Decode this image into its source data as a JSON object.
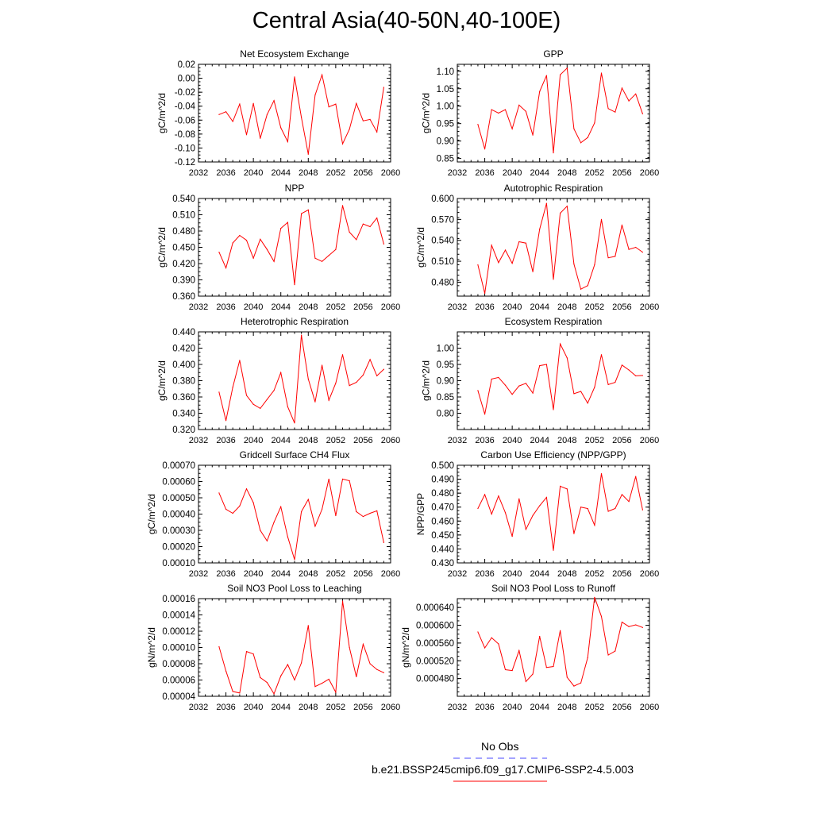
{
  "title": "Central Asia(40-50N,40-100E)",
  "colors": {
    "series": "#ff0000",
    "obs": "#4a4aff",
    "axis": "#000000"
  },
  "legend": {
    "obs_label": "No Obs",
    "model_label": "b.e21.BSSP245cmip6.f09_g17.CMIP6-SSP2-4.5.003"
  },
  "chart_data": [
    {
      "type": "line",
      "title": "Net Ecosystem Exchange",
      "ylabel": "gC/m^2/d",
      "xlim": [
        2032,
        2060
      ],
      "xticks": [
        2032,
        2036,
        2040,
        2044,
        2048,
        2052,
        2056,
        2060
      ],
      "xtick_labels": [
        "2032",
        "2036",
        "2040",
        "2044",
        "2048",
        "2052",
        "2056",
        "2060"
      ],
      "ylim": [
        -0.12,
        0.02
      ],
      "yticks": [
        -0.12,
        -0.1,
        -0.08,
        -0.06,
        -0.04,
        -0.02,
        0.0,
        0.02
      ],
      "ytick_labels": [
        "-0.12",
        "-0.10",
        "-0.08",
        "-0.06",
        "-0.04",
        "-0.02",
        "0.00",
        "0.02"
      ],
      "x": [
        2035,
        2036,
        2037,
        2038,
        2039,
        2040,
        2041,
        2042,
        2043,
        2044,
        2045,
        2046,
        2047,
        2048,
        2049,
        2050,
        2051,
        2052,
        2053,
        2054,
        2055,
        2056,
        2057,
        2058,
        2059
      ],
      "values": [
        -0.052,
        -0.048,
        -0.062,
        -0.037,
        -0.081,
        -0.036,
        -0.086,
        -0.052,
        -0.032,
        -0.071,
        -0.091,
        0.002,
        -0.056,
        -0.109,
        -0.024,
        0.005,
        -0.041,
        -0.037,
        -0.094,
        -0.073,
        -0.036,
        -0.061,
        -0.059,
        -0.077,
        -0.013
      ]
    },
    {
      "type": "line",
      "title": "GPP",
      "ylabel": "gC/m^2/d",
      "xlim": [
        2032,
        2060
      ],
      "xticks": [
        2032,
        2036,
        2040,
        2044,
        2048,
        2052,
        2056,
        2060
      ],
      "xtick_labels": [
        "2032",
        "2036",
        "2040",
        "2044",
        "2048",
        "2052",
        "2056",
        "2060"
      ],
      "ylim": [
        0.84,
        1.12
      ],
      "yticks": [
        0.85,
        0.9,
        0.95,
        1.0,
        1.05,
        1.1
      ],
      "ytick_labels": [
        "0.85",
        "0.90",
        "0.95",
        "1.00",
        "1.05",
        "1.10"
      ],
      "x": [
        2035,
        2036,
        2037,
        2038,
        2039,
        2040,
        2041,
        2042,
        2043,
        2044,
        2045,
        2046,
        2047,
        2048,
        2049,
        2050,
        2051,
        2052,
        2053,
        2054,
        2055,
        2056,
        2057,
        2058,
        2059
      ],
      "values": [
        0.948,
        0.877,
        0.99,
        0.98,
        0.99,
        0.935,
        1.003,
        0.985,
        0.917,
        1.042,
        1.088,
        0.866,
        1.09,
        1.109,
        0.935,
        0.895,
        0.91,
        0.952,
        1.095,
        0.993,
        0.983,
        1.052,
        1.015,
        1.035,
        0.978
      ]
    },
    {
      "type": "line",
      "title": "NPP",
      "ylabel": "gC/m^2/d",
      "xlim": [
        2032,
        2060
      ],
      "xticks": [
        2032,
        2036,
        2040,
        2044,
        2048,
        2052,
        2056,
        2060
      ],
      "xtick_labels": [
        "2032",
        "2036",
        "2040",
        "2044",
        "2048",
        "2052",
        "2056",
        "2060"
      ],
      "ylim": [
        0.36,
        0.54
      ],
      "yticks": [
        0.36,
        0.39,
        0.42,
        0.45,
        0.48,
        0.51,
        0.54
      ],
      "ytick_labels": [
        "0.360",
        "0.390",
        "0.420",
        "0.450",
        "0.480",
        "0.510",
        "0.540"
      ],
      "x": [
        2035,
        2036,
        2037,
        2038,
        2039,
        2040,
        2041,
        2042,
        2043,
        2044,
        2045,
        2046,
        2047,
        2048,
        2049,
        2050,
        2051,
        2052,
        2053,
        2054,
        2055,
        2056,
        2057,
        2058,
        2059
      ],
      "values": [
        0.441,
        0.412,
        0.458,
        0.472,
        0.463,
        0.43,
        0.465,
        0.446,
        0.424,
        0.485,
        0.496,
        0.381,
        0.512,
        0.519,
        0.43,
        0.424,
        0.435,
        0.446,
        0.527,
        0.478,
        0.464,
        0.493,
        0.488,
        0.504,
        0.456
      ]
    },
    {
      "type": "line",
      "title": "Autotrophic Respiration",
      "ylabel": "gC/m^2/d",
      "xlim": [
        2032,
        2060
      ],
      "xticks": [
        2032,
        2036,
        2040,
        2044,
        2048,
        2052,
        2056,
        2060
      ],
      "xtick_labels": [
        "2032",
        "2036",
        "2040",
        "2044",
        "2048",
        "2052",
        "2056",
        "2060"
      ],
      "ylim": [
        0.46,
        0.6
      ],
      "yticks": [
        0.48,
        0.51,
        0.54,
        0.57,
        0.6
      ],
      "ytick_labels": [
        "0.480",
        "0.510",
        "0.540",
        "0.570",
        "0.600"
      ],
      "x": [
        2035,
        2036,
        2037,
        2038,
        2039,
        2040,
        2041,
        2042,
        2043,
        2044,
        2045,
        2046,
        2047,
        2048,
        2049,
        2050,
        2051,
        2052,
        2053,
        2054,
        2055,
        2056,
        2057,
        2058,
        2059
      ],
      "values": [
        0.505,
        0.464,
        0.533,
        0.508,
        0.526,
        0.507,
        0.538,
        0.536,
        0.495,
        0.556,
        0.593,
        0.484,
        0.579,
        0.589,
        0.506,
        0.47,
        0.475,
        0.505,
        0.57,
        0.515,
        0.517,
        0.562,
        0.527,
        0.53,
        0.523
      ]
    },
    {
      "type": "line",
      "title": "Heterotrophic Respiration",
      "ylabel": "gC/m^2/d",
      "xlim": [
        2032,
        2060
      ],
      "xticks": [
        2032,
        2036,
        2040,
        2044,
        2048,
        2052,
        2056,
        2060
      ],
      "xtick_labels": [
        "2032",
        "2036",
        "2040",
        "2044",
        "2048",
        "2052",
        "2056",
        "2060"
      ],
      "ylim": [
        0.32,
        0.44
      ],
      "yticks": [
        0.32,
        0.34,
        0.36,
        0.38,
        0.4,
        0.42,
        0.44
      ],
      "ytick_labels": [
        "0.320",
        "0.340",
        "0.360",
        "0.380",
        "0.400",
        "0.420",
        "0.440"
      ],
      "x": [
        2035,
        2036,
        2037,
        2038,
        2039,
        2040,
        2041,
        2042,
        2043,
        2044,
        2045,
        2046,
        2047,
        2048,
        2049,
        2050,
        2051,
        2052,
        2053,
        2054,
        2055,
        2056,
        2057,
        2058,
        2059
      ],
      "values": [
        0.366,
        0.331,
        0.372,
        0.405,
        0.362,
        0.351,
        0.346,
        0.357,
        0.368,
        0.39,
        0.348,
        0.328,
        0.436,
        0.382,
        0.354,
        0.399,
        0.356,
        0.377,
        0.412,
        0.374,
        0.378,
        0.387,
        0.406,
        0.386,
        0.394
      ]
    },
    {
      "type": "line",
      "title": "Ecosystem Respiration",
      "ylabel": "gC/m^2/d",
      "xlim": [
        2032,
        2060
      ],
      "xticks": [
        2032,
        2036,
        2040,
        2044,
        2048,
        2052,
        2056,
        2060
      ],
      "xtick_labels": [
        "2032",
        "2036",
        "2040",
        "2044",
        "2048",
        "2052",
        "2056",
        "2060"
      ],
      "ylim": [
        0.75,
        1.05
      ],
      "yticks": [
        0.8,
        0.85,
        0.9,
        0.95,
        1.0
      ],
      "ytick_labels": [
        "0.80",
        "0.85",
        "0.90",
        "0.95",
        "1.00"
      ],
      "x": [
        2035,
        2036,
        2037,
        2038,
        2039,
        2040,
        2041,
        2042,
        2043,
        2044,
        2045,
        2046,
        2047,
        2048,
        2049,
        2050,
        2051,
        2052,
        2053,
        2054,
        2055,
        2056,
        2057,
        2058,
        2059
      ],
      "values": [
        0.87,
        0.797,
        0.905,
        0.91,
        0.886,
        0.858,
        0.884,
        0.892,
        0.862,
        0.946,
        0.95,
        0.811,
        1.013,
        0.97,
        0.86,
        0.867,
        0.831,
        0.88,
        0.98,
        0.888,
        0.895,
        0.948,
        0.933,
        0.915,
        0.916
      ]
    },
    {
      "type": "line",
      "title": "Gridcell Surface CH4 Flux",
      "ylabel": "gC/m^2/d",
      "xlim": [
        2032,
        2060
      ],
      "xticks": [
        2032,
        2036,
        2040,
        2044,
        2048,
        2052,
        2056,
        2060
      ],
      "xtick_labels": [
        "2032",
        "2036",
        "2040",
        "2044",
        "2048",
        "2052",
        "2056",
        "2060"
      ],
      "ylim": [
        0.0001,
        0.0007
      ],
      "yticks": [
        0.0001,
        0.0002,
        0.0003,
        0.0004,
        0.0005,
        0.0006,
        0.0007
      ],
      "ytick_labels": [
        "0.00010",
        "0.00020",
        "0.00030",
        "0.00040",
        "0.00050",
        "0.00060",
        "0.00070"
      ],
      "x": [
        2035,
        2036,
        2037,
        2038,
        2039,
        2040,
        2041,
        2042,
        2043,
        2044,
        2045,
        2046,
        2047,
        2048,
        2049,
        2050,
        2051,
        2052,
        2053,
        2054,
        2055,
        2056,
        2057,
        2058,
        2059
      ],
      "values": [
        0.00053,
        0.00043,
        0.000405,
        0.00045,
        0.000555,
        0.00047,
        0.0003,
        0.000235,
        0.00035,
        0.000445,
        0.00026,
        0.00012,
        0.000415,
        0.00049,
        0.000325,
        0.00043,
        0.000615,
        0.00039,
        0.000615,
        0.000605,
        0.000415,
        0.000385,
        0.000405,
        0.00042,
        0.000225
      ]
    },
    {
      "type": "line",
      "title": "Carbon Use Efficiency (NPP/GPP)",
      "ylabel": "NPP/GPP",
      "xlim": [
        2032,
        2060
      ],
      "xticks": [
        2032,
        2036,
        2040,
        2044,
        2048,
        2052,
        2056,
        2060
      ],
      "xtick_labels": [
        "2032",
        "2036",
        "2040",
        "2044",
        "2048",
        "2052",
        "2056",
        "2060"
      ],
      "ylim": [
        0.43,
        0.5
      ],
      "yticks": [
        0.43,
        0.44,
        0.45,
        0.46,
        0.47,
        0.48,
        0.49,
        0.5
      ],
      "ytick_labels": [
        "0.430",
        "0.440",
        "0.450",
        "0.460",
        "0.470",
        "0.480",
        "0.490",
        "0.500"
      ],
      "x": [
        2035,
        2036,
        2037,
        2038,
        2039,
        2040,
        2041,
        2042,
        2043,
        2044,
        2045,
        2046,
        2047,
        2048,
        2049,
        2050,
        2051,
        2052,
        2053,
        2054,
        2055,
        2056,
        2057,
        2058,
        2059
      ],
      "values": [
        0.469,
        0.479,
        0.465,
        0.478,
        0.466,
        0.449,
        0.476,
        0.454,
        0.464,
        0.471,
        0.477,
        0.439,
        0.485,
        0.483,
        0.451,
        0.47,
        0.469,
        0.457,
        0.494,
        0.467,
        0.469,
        0.479,
        0.474,
        0.492,
        0.468
      ]
    },
    {
      "type": "line",
      "title": "Soil NO3 Pool Loss to Leaching",
      "ylabel": "gN/m^2/d",
      "xlim": [
        2032,
        2060
      ],
      "xticks": [
        2032,
        2036,
        2040,
        2044,
        2048,
        2052,
        2056,
        2060
      ],
      "xtick_labels": [
        "2032",
        "2036",
        "2040",
        "2044",
        "2048",
        "2052",
        "2056",
        "2060"
      ],
      "ylim": [
        4e-05,
        0.00016
      ],
      "yticks": [
        4e-05,
        6e-05,
        8e-05,
        0.0001,
        0.00012,
        0.00014,
        0.00016
      ],
      "ytick_labels": [
        "0.00004",
        "0.00006",
        "0.00008",
        "0.00010",
        "0.00012",
        "0.00014",
        "0.00016"
      ],
      "x": [
        2035,
        2036,
        2037,
        2038,
        2039,
        2040,
        2041,
        2042,
        2043,
        2044,
        2045,
        2046,
        2047,
        2048,
        2049,
        2050,
        2051,
        2052,
        2053,
        2054,
        2055,
        2056,
        2057,
        2058,
        2059
      ],
      "values": [
        0.000101,
        7.1e-05,
        4.6e-05,
        4.4e-05,
        9.5e-05,
        9.2e-05,
        6.3e-05,
        5.7e-05,
        4.3e-05,
        6.5e-05,
        7.9e-05,
        6e-05,
        8.1e-05,
        0.000127,
        5.2e-05,
        5.6e-05,
        6.1e-05,
        4.5e-05,
        0.000157,
        0.0001,
        6.4e-05,
        0.000104,
        8e-05,
        7.3e-05,
        6.9e-05
      ]
    },
    {
      "type": "line",
      "title": "Soil NO3 Pool Loss to Runoff",
      "ylabel": "gN/m^2/d",
      "xlim": [
        2032,
        2060
      ],
      "xticks": [
        2032,
        2036,
        2040,
        2044,
        2048,
        2052,
        2056,
        2060
      ],
      "xtick_labels": [
        "2032",
        "2036",
        "2040",
        "2044",
        "2048",
        "2052",
        "2056",
        "2060"
      ],
      "ylim": [
        0.00044,
        0.00066
      ],
      "yticks": [
        0.00048,
        0.00052,
        0.00056,
        0.0006,
        0.00064
      ],
      "ytick_labels": [
        "0.000480",
        "0.000520",
        "0.000560",
        "0.000600",
        "0.000640"
      ],
      "x": [
        2035,
        2036,
        2037,
        2038,
        2039,
        2040,
        2041,
        2042,
        2043,
        2044,
        2045,
        2046,
        2047,
        2048,
        2049,
        2050,
        2051,
        2052,
        2053,
        2054,
        2055,
        2056,
        2057,
        2058,
        2059
      ],
      "values": [
        0.000585,
        0.000549,
        0.000572,
        0.000558,
        0.0005,
        0.000498,
        0.000543,
        0.000473,
        0.00049,
        0.000575,
        0.000505,
        0.000507,
        0.000588,
        0.000483,
        0.000463,
        0.00047,
        0.000527,
        0.000663,
        0.00062,
        0.000533,
        0.000542,
        0.000607,
        0.000597,
        0.000601,
        0.000595
      ]
    }
  ]
}
